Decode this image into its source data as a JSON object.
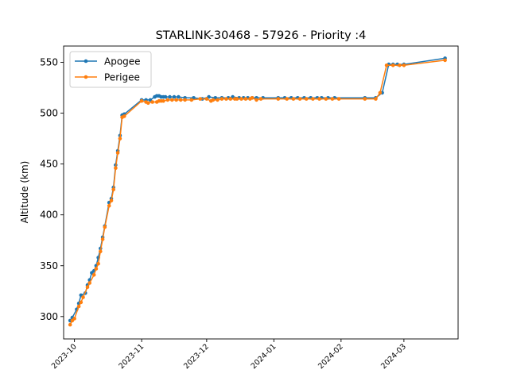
{
  "chart_data": {
    "type": "line",
    "title": "STARLINK-30468 - 57926 - Priority :4",
    "xlabel": "",
    "ylabel": "Altitude (km)",
    "x_type": "date",
    "xlim": [
      "2023-09-26",
      "2024-03-26"
    ],
    "ylim": [
      278,
      566
    ],
    "x_ticks": [
      "2023-10-01",
      "2023-11-01",
      "2023-12-01",
      "2024-01-01",
      "2024-02-01",
      "2024-03-01"
    ],
    "x_tick_labels": [
      "2023-10",
      "2023-11",
      "2023-12",
      "2024-01",
      "2024-02",
      "2024-03"
    ],
    "y_ticks": [
      300,
      350,
      400,
      450,
      500,
      550
    ],
    "y_tick_labels": [
      "300",
      "350",
      "400",
      "450",
      "500",
      "550"
    ],
    "grid": false,
    "legend": "upper-left",
    "series": [
      {
        "name": "Apogee",
        "color": "#1f77b4",
        "marker": "circle",
        "x": [
          "2023-09-29",
          "2023-09-30",
          "2023-10-02",
          "2023-10-03",
          "2023-10-04",
          "2023-10-06",
          "2023-10-07",
          "2023-10-08",
          "2023-10-09",
          "2023-10-10",
          "2023-10-11",
          "2023-10-12",
          "2023-10-13",
          "2023-10-14",
          "2023-10-15",
          "2023-10-17",
          "2023-10-18",
          "2023-10-19",
          "2023-10-20",
          "2023-10-21",
          "2023-10-22",
          "2023-10-23",
          "2023-10-24",
          "2023-11-01",
          "2023-11-03",
          "2023-11-05",
          "2023-11-07",
          "2023-11-08",
          "2023-11-09",
          "2023-11-10",
          "2023-11-11",
          "2023-11-12",
          "2023-11-14",
          "2023-11-16",
          "2023-11-18",
          "2023-11-21",
          "2023-11-25",
          "2023-11-29",
          "2023-12-02",
          "2023-12-05",
          "2023-12-08",
          "2023-12-11",
          "2023-12-13",
          "2023-12-16",
          "2023-12-18",
          "2023-12-20",
          "2023-12-22",
          "2023-12-24",
          "2023-12-27",
          "2024-01-03",
          "2024-01-06",
          "2024-01-09",
          "2024-01-12",
          "2024-01-15",
          "2024-01-18",
          "2024-01-21",
          "2024-01-23",
          "2024-01-26",
          "2024-01-29",
          "2024-02-12",
          "2024-02-17",
          "2024-02-20",
          "2024-02-23",
          "2024-02-25",
          "2024-02-27",
          "2024-03-01",
          "2024-03-20"
        ],
        "y": [
          296,
          299,
          307,
          313,
          321,
          323,
          331,
          336,
          343,
          345,
          350,
          358,
          367,
          378,
          389,
          412,
          416,
          427,
          449,
          463,
          478,
          498,
          499,
          513,
          513,
          513,
          516,
          517,
          517,
          516,
          516,
          516,
          516,
          516,
          516,
          515,
          515,
          514,
          516,
          515,
          515,
          515,
          516,
          515,
          515,
          515,
          515,
          515,
          515,
          515,
          515,
          515,
          515,
          515,
          515,
          515,
          515,
          515,
          515,
          515,
          515,
          520,
          548,
          548,
          548,
          548,
          554
        ]
      },
      {
        "name": "Perigee",
        "color": "#ff7f0e",
        "marker": "circle",
        "x": [
          "2023-09-29",
          "2023-09-30",
          "2023-10-01",
          "2023-10-03",
          "2023-10-04",
          "2023-10-05",
          "2023-10-07",
          "2023-10-08",
          "2023-10-10",
          "2023-10-11",
          "2023-10-12",
          "2023-10-13",
          "2023-10-14",
          "2023-10-15",
          "2023-10-17",
          "2023-10-18",
          "2023-10-19",
          "2023-10-20",
          "2023-10-21",
          "2023-10-22",
          "2023-10-23",
          "2023-10-24",
          "2023-11-01",
          "2023-11-03",
          "2023-11-04",
          "2023-11-06",
          "2023-11-08",
          "2023-11-09",
          "2023-11-10",
          "2023-11-11",
          "2023-11-13",
          "2023-11-15",
          "2023-11-17",
          "2023-11-19",
          "2023-11-21",
          "2023-11-24",
          "2023-11-28",
          "2023-12-01",
          "2023-12-03",
          "2023-12-04",
          "2023-12-06",
          "2023-12-08",
          "2023-12-10",
          "2023-12-12",
          "2023-12-14",
          "2023-12-15",
          "2023-12-17",
          "2023-12-19",
          "2023-12-21",
          "2023-12-22",
          "2023-12-24",
          "2023-12-26",
          "2024-01-03",
          "2024-01-07",
          "2024-01-10",
          "2024-01-13",
          "2024-01-16",
          "2024-01-19",
          "2024-01-22",
          "2024-01-25",
          "2024-01-28",
          "2024-01-31",
          "2024-02-12",
          "2024-02-17",
          "2024-02-19",
          "2024-02-22",
          "2024-02-25",
          "2024-02-28",
          "2024-03-01",
          "2024-03-20"
        ],
        "y": [
          292,
          296,
          298,
          310,
          314,
          319,
          329,
          333,
          341,
          347,
          352,
          364,
          376,
          388,
          409,
          414,
          425,
          446,
          461,
          475,
          496,
          497,
          512,
          511,
          510,
          511,
          511,
          512,
          512,
          512,
          513,
          513,
          513,
          513,
          513,
          513,
          514,
          514,
          512,
          513,
          513,
          514,
          514,
          514,
          514,
          514,
          514,
          514,
          514,
          515,
          513,
          514,
          514,
          514,
          514,
          514,
          514,
          514,
          514,
          514,
          514,
          514,
          514,
          514,
          520,
          547,
          547,
          547,
          547,
          552
        ]
      }
    ]
  }
}
